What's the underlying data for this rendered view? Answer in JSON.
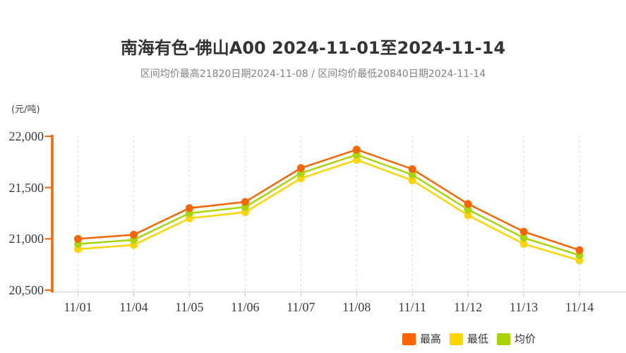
{
  "header": {
    "title": "南海有色-佛山A00 2024-11-01至2024-11-14",
    "subtitle": "区间均价最高21820日期2024-11-08 / 区间均价最低20840日期2024-11-14"
  },
  "chart_data": {
    "type": "line",
    "title": "南海有色-佛山A00 2024-11-01至2024-11-14",
    "subtitle": "区间均价最高21820日期2024-11-08 / 区间均价最低20840日期2024-11-14",
    "unit_label": "(元/吨)",
    "categories": [
      "11/01",
      "11/04",
      "11/05",
      "11/06",
      "11/07",
      "11/08",
      "11/11",
      "11/12",
      "11/13",
      "11/14"
    ],
    "series": [
      {
        "name": "最高",
        "color": "#fb6500",
        "values": [
          21000,
          21040,
          21300,
          21360,
          21690,
          21870,
          21680,
          21340,
          21070,
          20890
        ]
      },
      {
        "name": "最低",
        "color": "#ffd400",
        "values": [
          20900,
          20940,
          21200,
          21260,
          21590,
          21770,
          21570,
          21230,
          20950,
          20790
        ]
      },
      {
        "name": "均价",
        "color": "#a8d408",
        "values": [
          20950,
          20990,
          21250,
          21310,
          21640,
          21820,
          21625,
          21285,
          21010,
          20840
        ]
      }
    ],
    "ylim": [
      20500,
      22000
    ],
    "y_ticks": [
      "22,000",
      "21,500",
      "21,000",
      "20,500"
    ],
    "y_tick_values": [
      22000,
      21500,
      21000,
      20500
    ],
    "grid": "vertical-dashed",
    "legend_position": "bottom-right",
    "annotations": {
      "max_avg_value": "21820",
      "max_avg_date": "2024-11-08",
      "min_avg_value": "20840",
      "min_avg_date": "2024-11-14"
    }
  },
  "legend": {
    "items": [
      {
        "label": "最高",
        "color": "#fb6500"
      },
      {
        "label": "最低",
        "color": "#ffd400"
      },
      {
        "label": "均价",
        "color": "#a8d408"
      }
    ]
  },
  "colors": {
    "y_axis": "#fb6500",
    "x_axis_line": "#dcdcdc",
    "x_axis_tick": "#c9c9c9",
    "gridline": "#e3e3e3",
    "title_text": "#333333",
    "subtitle_text": "#828282",
    "axis_text": "#3a3a3a"
  }
}
